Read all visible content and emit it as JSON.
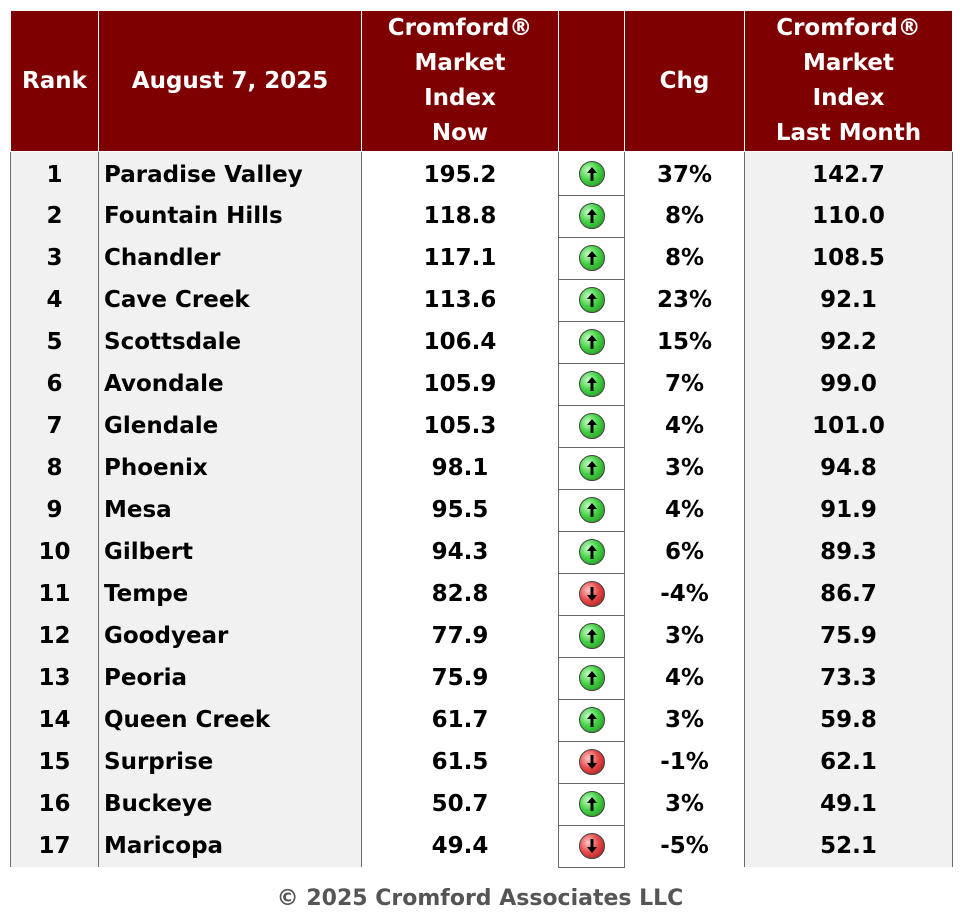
{
  "table": {
    "headers": {
      "rank": "Rank",
      "date": "August 7, 2025",
      "index_now": [
        "Cromford®",
        "Market",
        "Index",
        "Now"
      ],
      "change": "Chg",
      "index_last_month": [
        "Cromford®",
        "Market",
        "Index",
        "Last Month"
      ]
    },
    "rows": [
      {
        "rank": "1",
        "city": "Paradise Valley",
        "now": "195.2",
        "direction": "up",
        "change": "37%",
        "last": "142.7"
      },
      {
        "rank": "2",
        "city": "Fountain Hills",
        "now": "118.8",
        "direction": "up",
        "change": "8%",
        "last": "110.0"
      },
      {
        "rank": "3",
        "city": "Chandler",
        "now": "117.1",
        "direction": "up",
        "change": "8%",
        "last": "108.5"
      },
      {
        "rank": "4",
        "city": "Cave Creek",
        "now": "113.6",
        "direction": "up",
        "change": "23%",
        "last": "92.1"
      },
      {
        "rank": "5",
        "city": "Scottsdale",
        "now": "106.4",
        "direction": "up",
        "change": "15%",
        "last": "92.2"
      },
      {
        "rank": "6",
        "city": "Avondale",
        "now": "105.9",
        "direction": "up",
        "change": "7%",
        "last": "99.0"
      },
      {
        "rank": "7",
        "city": "Glendale",
        "now": "105.3",
        "direction": "up",
        "change": "4%",
        "last": "101.0"
      },
      {
        "rank": "8",
        "city": "Phoenix",
        "now": "98.1",
        "direction": "up",
        "change": "3%",
        "last": "94.8"
      },
      {
        "rank": "9",
        "city": "Mesa",
        "now": "95.5",
        "direction": "up",
        "change": "4%",
        "last": "91.9"
      },
      {
        "rank": "10",
        "city": "Gilbert",
        "now": "94.3",
        "direction": "up",
        "change": "6%",
        "last": "89.3"
      },
      {
        "rank": "11",
        "city": "Tempe",
        "now": "82.8",
        "direction": "down",
        "change": "-4%",
        "last": "86.7"
      },
      {
        "rank": "12",
        "city": "Goodyear",
        "now": "77.9",
        "direction": "up",
        "change": "3%",
        "last": "75.9"
      },
      {
        "rank": "13",
        "city": "Peoria",
        "now": "75.9",
        "direction": "up",
        "change": "4%",
        "last": "73.3"
      },
      {
        "rank": "14",
        "city": "Queen Creek",
        "now": "61.7",
        "direction": "up",
        "change": "3%",
        "last": "59.8"
      },
      {
        "rank": "15",
        "city": "Surprise",
        "now": "61.5",
        "direction": "down",
        "change": "-1%",
        "last": "62.1"
      },
      {
        "rank": "16",
        "city": "Buckeye",
        "now": "50.7",
        "direction": "up",
        "change": "3%",
        "last": "49.1"
      },
      {
        "rank": "17",
        "city": "Maricopa",
        "now": "49.4",
        "direction": "down",
        "change": "-5%",
        "last": "52.1"
      }
    ]
  },
  "icons": {
    "up": "green-up-arrow-icon",
    "down": "red-down-arrow-icon"
  },
  "colors": {
    "header_bg": "#7f0000",
    "up": "#2fb52f",
    "down": "#d42a2a"
  },
  "footer": {
    "copyright": "© 2025 Cromford Associates LLC"
  }
}
